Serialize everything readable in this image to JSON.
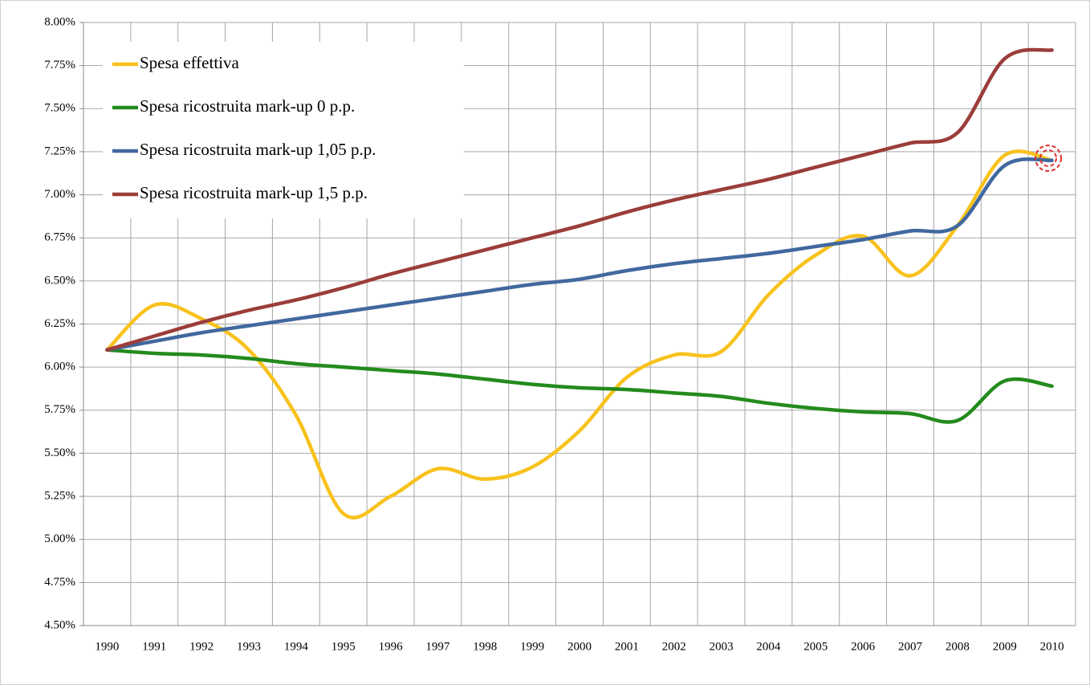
{
  "chart_data": {
    "type": "line",
    "categories": [
      "1990",
      "1991",
      "1992",
      "1993",
      "1994",
      "1995",
      "1996",
      "1997",
      "1998",
      "1999",
      "2000",
      "2001",
      "2002",
      "2003",
      "2004",
      "2005",
      "2006",
      "2007",
      "2008",
      "2009",
      "2010"
    ],
    "series": [
      {
        "name": "Spesa effettiva",
        "color": "#f8c21c",
        "values": [
          6.1,
          6.36,
          6.28,
          6.1,
          5.72,
          5.15,
          5.25,
          5.41,
          5.35,
          5.42,
          5.63,
          5.94,
          6.07,
          6.09,
          6.42,
          6.65,
          6.76,
          6.53,
          6.82,
          7.23,
          7.2
        ]
      },
      {
        "name": "Spesa ricostruita mark-up 0 p.p.",
        "color": "#238b1c",
        "values": [
          6.1,
          6.08,
          6.07,
          6.05,
          6.02,
          6.0,
          5.98,
          5.96,
          5.93,
          5.9,
          5.88,
          5.87,
          5.85,
          5.83,
          5.79,
          5.76,
          5.74,
          5.73,
          5.69,
          5.92,
          5.89
        ]
      },
      {
        "name": "Spesa ricostruita mark-up 1,05 p.p.",
        "color": "#41689f",
        "values": [
          6.1,
          6.15,
          6.2,
          6.24,
          6.28,
          6.32,
          6.36,
          6.4,
          6.44,
          6.48,
          6.51,
          6.56,
          6.6,
          6.63,
          6.66,
          6.7,
          6.74,
          6.79,
          6.82,
          7.17,
          7.2
        ]
      },
      {
        "name": "Spesa ricostruita mark-up 1,5 p.p.",
        "color": "#9b3d3a",
        "values": [
          6.1,
          6.18,
          6.26,
          6.33,
          6.39,
          6.46,
          6.54,
          6.61,
          6.68,
          6.75,
          6.82,
          6.9,
          6.97,
          7.03,
          7.09,
          7.16,
          7.23,
          7.3,
          7.36,
          7.79,
          7.84
        ]
      }
    ],
    "ylim": [
      4.5,
      8.0
    ],
    "yticks": [
      {
        "value": 4.5,
        "label": "4.50%"
      },
      {
        "value": 4.75,
        "label": "4.75%"
      },
      {
        "value": 5.0,
        "label": "5.00%"
      },
      {
        "value": 5.25,
        "label": "5.25%"
      },
      {
        "value": 5.5,
        "label": "5.50%"
      },
      {
        "value": 5.75,
        "label": "5.75%"
      },
      {
        "value": 6.0,
        "label": "6.00%"
      },
      {
        "value": 6.25,
        "label": "6.25%"
      },
      {
        "value": 6.5,
        "label": "6.50%"
      },
      {
        "value": 6.75,
        "label": "6.75%"
      },
      {
        "value": 7.0,
        "label": "7.00%"
      },
      {
        "value": 7.25,
        "label": "7.25%"
      },
      {
        "value": 7.5,
        "label": "7.50%"
      },
      {
        "value": 7.75,
        "label": "7.75%"
      },
      {
        "value": 8.0,
        "label": "8.00%"
      }
    ],
    "grid": true,
    "legend": "top-left"
  }
}
